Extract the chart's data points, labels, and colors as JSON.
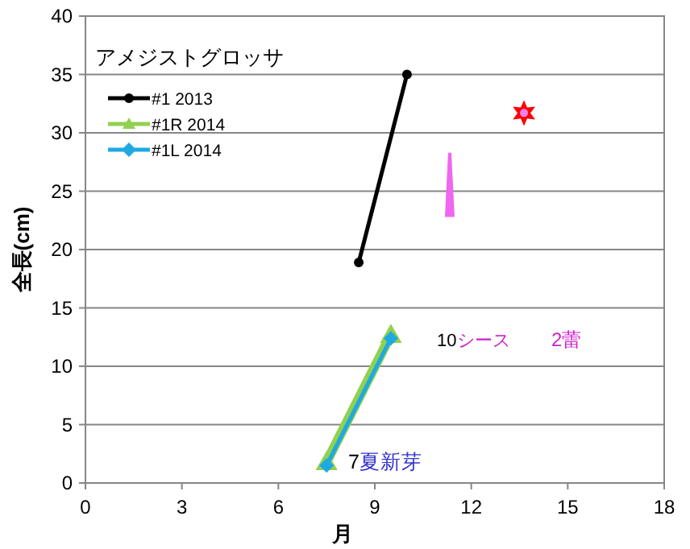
{
  "chart_data": {
    "type": "line",
    "legend_title": "アメジストグロッサ",
    "xlabel": "月",
    "ylabel": "全長(cm)",
    "series": [
      {
        "name": "#1 2013",
        "color": "#000000",
        "marker": "circle",
        "x": [
          8.5,
          10
        ],
        "values": [
          18.9,
          35
        ]
      },
      {
        "name": "#1R 2014",
        "color": "#92d050",
        "marker": "triangle",
        "x": [
          7.5,
          9.5
        ],
        "values": [
          1.8,
          12.7
        ]
      },
      {
        "name": "#1L 2014",
        "color": "#1fa9e1",
        "marker": "diamond",
        "x": [
          7.5,
          9.5
        ],
        "values": [
          1.5,
          12.4
        ]
      }
    ],
    "annotations": [
      "7夏新芽",
      "10シース",
      "2蕾"
    ],
    "xlim": [
      0,
      18
    ],
    "xticks": [
      0,
      3,
      6,
      9,
      12,
      15,
      18
    ],
    "ylim": [
      0,
      40
    ],
    "yticks": [
      0,
      5,
      10,
      15,
      20,
      25,
      30,
      35,
      40
    ],
    "grid": "y",
    "legend": "top left"
  }
}
